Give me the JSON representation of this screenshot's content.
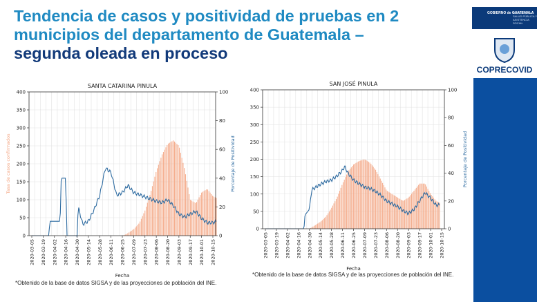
{
  "slide": {
    "title_part1": "Tendencia de casos y positividad de pruebas en 2 municipios del departamento de Guatemala – ",
    "title_part2": "segunda oleada en proceso",
    "footnote": "*Obtenido de la base de datos SIGSA y de las proyecciones de población del INE.",
    "brand": {
      "gov_name": "GOBIERNO de GUATEMALA",
      "ministry": "MINISTERIO DE SALUD PÚBLICA Y ASISTENCIA SOCIAL",
      "coprecovid": "COPRECOVID"
    },
    "colors": {
      "bars": "#f4a582",
      "line": "#2c6aa0",
      "title": "#1f8ac2",
      "title_dark": "#123a7a",
      "brand": "#0b4fa0"
    }
  },
  "chart_data": [
    {
      "type": "bar",
      "title": "SANTA CATARINA PINULA",
      "xlabel": "Fecha",
      "ylabel_left": "Tasa de casos confirmados",
      "ylabel_right": "Porcentaje de Positividad",
      "ylim_left": [
        0,
        400
      ],
      "yticks_left": [
        0,
        50,
        100,
        150,
        200,
        250,
        300,
        350,
        400
      ],
      "ylim_right": [
        0,
        100
      ],
      "yticks_right": [
        0,
        20,
        40,
        60,
        80,
        100
      ],
      "x_ticks": [
        "2020-03-05",
        "2020-03-19",
        "2020-04-02",
        "2020-04-16",
        "2020-04-30",
        "2020-05-14",
        "2020-05-28",
        "2020-06-11",
        "2020-06-25",
        "2020-07-09",
        "2020-07-23",
        "2020-08-06",
        "2020-08-20",
        "2020-09-03",
        "2020-09-17",
        "2020-10-01",
        "2020-10-15"
      ],
      "bar_series": {
        "name": "Tasa de casos confirmados",
        "anchors": [
          [
            0,
            0
          ],
          [
            8,
            0
          ],
          [
            8.4,
            5
          ],
          [
            9,
            18
          ],
          [
            9.5,
            35
          ],
          [
            10,
            70
          ],
          [
            10.5,
            120
          ],
          [
            11,
            180
          ],
          [
            11.5,
            225
          ],
          [
            12,
            255
          ],
          [
            12.5,
            265
          ],
          [
            13,
            250
          ],
          [
            13.5,
            185
          ],
          [
            14,
            100
          ],
          [
            14.5,
            90
          ],
          [
            15,
            120
          ],
          [
            15.5,
            130
          ],
          [
            16,
            110
          ],
          [
            16.3,
            105
          ]
        ]
      },
      "line_series": {
        "name": "Porcentaje de Positividad",
        "anchors": [
          [
            0,
            0
          ],
          [
            1.5,
            0
          ],
          [
            1.6,
            10
          ],
          [
            2.5,
            10
          ],
          [
            2.6,
            40
          ],
          [
            3,
            40
          ],
          [
            3.1,
            0
          ],
          [
            4,
            0
          ],
          [
            4.1,
            20
          ],
          [
            4.5,
            8
          ],
          [
            5,
            10
          ],
          [
            5.5,
            18
          ],
          [
            6,
            28
          ],
          [
            6.5,
            47
          ],
          [
            7,
            44
          ],
          [
            7.5,
            28
          ],
          [
            8,
            30
          ],
          [
            8.5,
            35
          ],
          [
            9,
            30
          ],
          [
            10,
            27
          ],
          [
            11,
            24
          ],
          [
            11.5,
            23
          ],
          [
            12,
            25
          ],
          [
            12.5,
            21
          ],
          [
            13,
            15
          ],
          [
            13.5,
            13
          ],
          [
            14,
            15
          ],
          [
            14.5,
            17
          ],
          [
            15,
            12
          ],
          [
            15.5,
            9
          ],
          [
            16,
            9
          ],
          [
            16.3,
            10
          ]
        ]
      }
    },
    {
      "type": "bar",
      "title": "SAN JOSÉ PINULA",
      "xlabel": "Fecha",
      "ylabel_left": "",
      "ylabel_right": "Porcentaje de Positividad",
      "ylim_left": [
        0,
        400
      ],
      "yticks_left": [
        0,
        50,
        100,
        150,
        200,
        250,
        300,
        350,
        400
      ],
      "ylim_right": [
        0,
        100
      ],
      "yticks_right": [
        0,
        20,
        40,
        60,
        80,
        100
      ],
      "x_ticks": [
        "2020-03-05",
        "2020-03-19",
        "2020-04-02",
        "2020-04-16",
        "2020-04-30",
        "2020-05-14",
        "2020-05-28",
        "2020-06-11",
        "2020-06-25",
        "2020-07-09",
        "2020-07-23",
        "2020-08-06",
        "2020-08-20",
        "2020-09-03",
        "2020-09-17",
        "2020-10-01",
        "2020-10-15"
      ],
      "bar_series": {
        "name": "Tasa de casos confirmados",
        "anchors": [
          [
            0,
            0
          ],
          [
            4,
            0
          ],
          [
            4.5,
            10
          ],
          [
            5,
            20
          ],
          [
            5.5,
            35
          ],
          [
            6,
            60
          ],
          [
            6.5,
            90
          ],
          [
            7,
            130
          ],
          [
            7.5,
            165
          ],
          [
            8,
            185
          ],
          [
            8.5,
            195
          ],
          [
            9,
            200
          ],
          [
            9.5,
            190
          ],
          [
            10,
            170
          ],
          [
            10.5,
            140
          ],
          [
            11,
            110
          ],
          [
            11.5,
            100
          ],
          [
            12,
            90
          ],
          [
            12.5,
            80
          ],
          [
            13,
            90
          ],
          [
            13.5,
            110
          ],
          [
            14,
            130
          ],
          [
            14.5,
            130
          ],
          [
            15,
            100
          ],
          [
            15.5,
            80
          ],
          [
            15.8,
            75
          ]
        ]
      },
      "line_series": {
        "name": "Porcentaje de Positividad",
        "anchors": [
          [
            0,
            0
          ],
          [
            3.5,
            0
          ],
          [
            3.6,
            10
          ],
          [
            4,
            14
          ],
          [
            4.2,
            28
          ],
          [
            5,
            32
          ],
          [
            5.5,
            34
          ],
          [
            6,
            35
          ],
          [
            6.5,
            38
          ],
          [
            7,
            42
          ],
          [
            7.2,
            45
          ],
          [
            7.5,
            40
          ],
          [
            8,
            35
          ],
          [
            9,
            30
          ],
          [
            9.5,
            29
          ],
          [
            10,
            27
          ],
          [
            10.5,
            24
          ],
          [
            11,
            20
          ],
          [
            11.5,
            18
          ],
          [
            12,
            16
          ],
          [
            12.5,
            13
          ],
          [
            13,
            11
          ],
          [
            13.5,
            14
          ],
          [
            14,
            20
          ],
          [
            14.5,
            26
          ],
          [
            15,
            22
          ],
          [
            15.5,
            17
          ],
          [
            15.8,
            17
          ]
        ]
      }
    }
  ]
}
